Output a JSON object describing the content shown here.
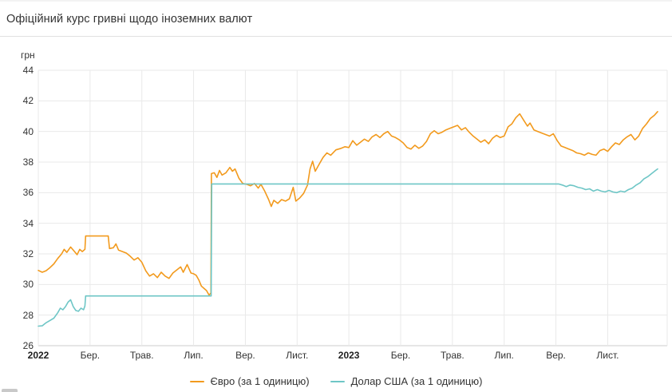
{
  "header": {
    "title": "Офіційний курс гривні щодо іноземних валют"
  },
  "chart_data": {
    "type": "line",
    "title": "Офіційний курс гривні щодо іноземних валют",
    "ylabel": "грн",
    "xlabel": "",
    "ylim": [
      26,
      44
    ],
    "xlim_months": [
      0,
      24.3
    ],
    "grid": true,
    "legend_position": "bottom-center",
    "y_ticks": [
      44,
      42,
      40,
      38,
      36,
      34,
      32,
      30,
      28,
      26
    ],
    "x_ticks": [
      {
        "m": 0,
        "label": "2022",
        "bold": true
      },
      {
        "m": 2,
        "label": "Бер.",
        "bold": false
      },
      {
        "m": 4,
        "label": "Трав.",
        "bold": false
      },
      {
        "m": 6,
        "label": "Лип.",
        "bold": false
      },
      {
        "m": 8,
        "label": "Вер.",
        "bold": false
      },
      {
        "m": 10,
        "label": "Лист.",
        "bold": false
      },
      {
        "m": 12,
        "label": "2023",
        "bold": true
      },
      {
        "m": 14,
        "label": "Бер.",
        "bold": false
      },
      {
        "m": 16,
        "label": "Трав.",
        "bold": false
      },
      {
        "m": 18,
        "label": "Лип.",
        "bold": false
      },
      {
        "m": 20,
        "label": "Вер.",
        "bold": false
      },
      {
        "m": 22,
        "label": "Лист.",
        "bold": false
      }
    ],
    "series": [
      {
        "name": "Євро (за 1 одиницю)",
        "color": "#f29a1d",
        "points": [
          [
            0,
            30.92
          ],
          [
            0.15,
            30.8
          ],
          [
            0.3,
            30.9
          ],
          [
            0.45,
            31.1
          ],
          [
            0.6,
            31.35
          ],
          [
            0.75,
            31.7
          ],
          [
            0.9,
            32.0
          ],
          [
            1.0,
            32.3
          ],
          [
            1.1,
            32.1
          ],
          [
            1.25,
            32.45
          ],
          [
            1.4,
            32.15
          ],
          [
            1.5,
            31.95
          ],
          [
            1.6,
            32.3
          ],
          [
            1.7,
            32.15
          ],
          [
            1.8,
            32.3
          ],
          [
            1.83,
            33.17
          ],
          [
            2.7,
            33.17
          ],
          [
            2.75,
            32.35
          ],
          [
            2.9,
            32.4
          ],
          [
            3.0,
            32.65
          ],
          [
            3.1,
            32.25
          ],
          [
            3.25,
            32.15
          ],
          [
            3.4,
            32.05
          ],
          [
            3.55,
            31.85
          ],
          [
            3.7,
            31.6
          ],
          [
            3.85,
            31.75
          ],
          [
            4.0,
            31.45
          ],
          [
            4.15,
            30.9
          ],
          [
            4.3,
            30.55
          ],
          [
            4.45,
            30.7
          ],
          [
            4.6,
            30.45
          ],
          [
            4.75,
            30.8
          ],
          [
            4.9,
            30.55
          ],
          [
            5.05,
            30.4
          ],
          [
            5.2,
            30.75
          ],
          [
            5.35,
            30.95
          ],
          [
            5.5,
            31.15
          ],
          [
            5.6,
            30.8
          ],
          [
            5.75,
            31.3
          ],
          [
            5.9,
            30.75
          ],
          [
            6.0,
            30.7
          ],
          [
            6.1,
            30.6
          ],
          [
            6.2,
            30.3
          ],
          [
            6.3,
            29.9
          ],
          [
            6.4,
            29.75
          ],
          [
            6.5,
            29.6
          ],
          [
            6.6,
            29.3
          ],
          [
            6.67,
            29.45
          ],
          [
            6.69,
            37.25
          ],
          [
            6.8,
            37.3
          ],
          [
            6.9,
            37.0
          ],
          [
            7.0,
            37.45
          ],
          [
            7.1,
            37.15
          ],
          [
            7.25,
            37.3
          ],
          [
            7.4,
            37.65
          ],
          [
            7.5,
            37.4
          ],
          [
            7.6,
            37.55
          ],
          [
            7.75,
            36.95
          ],
          [
            7.9,
            36.6
          ],
          [
            8.05,
            36.55
          ],
          [
            8.2,
            36.45
          ],
          [
            8.35,
            36.6
          ],
          [
            8.5,
            36.3
          ],
          [
            8.6,
            36.55
          ],
          [
            8.75,
            36.1
          ],
          [
            8.9,
            35.55
          ],
          [
            9.0,
            35.1
          ],
          [
            9.1,
            35.5
          ],
          [
            9.25,
            35.3
          ],
          [
            9.4,
            35.55
          ],
          [
            9.55,
            35.45
          ],
          [
            9.7,
            35.6
          ],
          [
            9.85,
            36.35
          ],
          [
            9.95,
            35.45
          ],
          [
            10.1,
            35.65
          ],
          [
            10.25,
            35.95
          ],
          [
            10.4,
            36.5
          ],
          [
            10.5,
            37.55
          ],
          [
            10.6,
            38.05
          ],
          [
            10.7,
            37.4
          ],
          [
            10.85,
            37.85
          ],
          [
            11.0,
            38.3
          ],
          [
            11.15,
            38.6
          ],
          [
            11.3,
            38.45
          ],
          [
            11.5,
            38.8
          ],
          [
            11.7,
            38.9
          ],
          [
            11.85,
            39.0
          ],
          [
            12.0,
            38.95
          ],
          [
            12.15,
            39.4
          ],
          [
            12.3,
            39.1
          ],
          [
            12.45,
            39.3
          ],
          [
            12.6,
            39.5
          ],
          [
            12.75,
            39.35
          ],
          [
            12.9,
            39.65
          ],
          [
            13.05,
            39.8
          ],
          [
            13.2,
            39.6
          ],
          [
            13.35,
            39.85
          ],
          [
            13.5,
            40.0
          ],
          [
            13.65,
            39.7
          ],
          [
            13.8,
            39.6
          ],
          [
            13.95,
            39.45
          ],
          [
            14.1,
            39.25
          ],
          [
            14.25,
            38.95
          ],
          [
            14.4,
            38.85
          ],
          [
            14.55,
            39.1
          ],
          [
            14.7,
            38.9
          ],
          [
            14.85,
            39.05
          ],
          [
            15.0,
            39.35
          ],
          [
            15.15,
            39.85
          ],
          [
            15.3,
            40.05
          ],
          [
            15.45,
            39.85
          ],
          [
            15.6,
            39.95
          ],
          [
            15.75,
            40.1
          ],
          [
            15.9,
            40.2
          ],
          [
            16.05,
            40.3
          ],
          [
            16.2,
            40.4
          ],
          [
            16.35,
            40.1
          ],
          [
            16.5,
            40.25
          ],
          [
            16.65,
            39.95
          ],
          [
            16.8,
            39.7
          ],
          [
            16.95,
            39.5
          ],
          [
            17.1,
            39.3
          ],
          [
            17.25,
            39.45
          ],
          [
            17.4,
            39.2
          ],
          [
            17.55,
            39.55
          ],
          [
            17.7,
            39.75
          ],
          [
            17.85,
            39.6
          ],
          [
            18.0,
            39.7
          ],
          [
            18.15,
            40.3
          ],
          [
            18.3,
            40.5
          ],
          [
            18.45,
            40.9
          ],
          [
            18.6,
            41.15
          ],
          [
            18.75,
            40.75
          ],
          [
            18.9,
            40.35
          ],
          [
            19.0,
            40.55
          ],
          [
            19.15,
            40.1
          ],
          [
            19.3,
            40.0
          ],
          [
            19.45,
            39.9
          ],
          [
            19.6,
            39.8
          ],
          [
            19.75,
            39.7
          ],
          [
            19.9,
            39.85
          ],
          [
            20.05,
            39.4
          ],
          [
            20.2,
            39.05
          ],
          [
            20.35,
            38.95
          ],
          [
            20.5,
            38.85
          ],
          [
            20.65,
            38.75
          ],
          [
            20.8,
            38.6
          ],
          [
            20.95,
            38.55
          ],
          [
            21.1,
            38.45
          ],
          [
            21.25,
            38.6
          ],
          [
            21.4,
            38.5
          ],
          [
            21.55,
            38.45
          ],
          [
            21.7,
            38.75
          ],
          [
            21.85,
            38.85
          ],
          [
            22.0,
            38.7
          ],
          [
            22.15,
            39.0
          ],
          [
            22.3,
            39.25
          ],
          [
            22.45,
            39.15
          ],
          [
            22.6,
            39.45
          ],
          [
            22.75,
            39.65
          ],
          [
            22.9,
            39.8
          ],
          [
            23.05,
            39.45
          ],
          [
            23.2,
            39.7
          ],
          [
            23.35,
            40.2
          ],
          [
            23.5,
            40.5
          ],
          [
            23.65,
            40.85
          ],
          [
            23.8,
            41.05
          ],
          [
            23.93,
            41.3
          ]
        ]
      },
      {
        "name": "Долар США (за 1 одиницю)",
        "color": "#6ec6c6",
        "points": [
          [
            0,
            27.28
          ],
          [
            0.15,
            27.3
          ],
          [
            0.3,
            27.5
          ],
          [
            0.45,
            27.65
          ],
          [
            0.6,
            27.8
          ],
          [
            0.75,
            28.15
          ],
          [
            0.85,
            28.45
          ],
          [
            0.95,
            28.35
          ],
          [
            1.05,
            28.55
          ],
          [
            1.15,
            28.85
          ],
          [
            1.25,
            29.0
          ],
          [
            1.35,
            28.55
          ],
          [
            1.45,
            28.3
          ],
          [
            1.55,
            28.25
          ],
          [
            1.65,
            28.45
          ],
          [
            1.75,
            28.35
          ],
          [
            1.8,
            28.6
          ],
          [
            1.83,
            29.25
          ],
          [
            6.68,
            29.25
          ],
          [
            6.7,
            36.57
          ],
          [
            20.1,
            36.57
          ],
          [
            20.25,
            36.5
          ],
          [
            20.4,
            36.4
          ],
          [
            20.55,
            36.5
          ],
          [
            20.7,
            36.45
          ],
          [
            20.85,
            36.35
          ],
          [
            21.0,
            36.3
          ],
          [
            21.15,
            36.2
          ],
          [
            21.3,
            36.25
          ],
          [
            21.45,
            36.1
          ],
          [
            21.6,
            36.2
          ],
          [
            21.75,
            36.1
          ],
          [
            21.9,
            36.05
          ],
          [
            22.05,
            36.15
          ],
          [
            22.2,
            36.05
          ],
          [
            22.35,
            36.0
          ],
          [
            22.5,
            36.1
          ],
          [
            22.65,
            36.05
          ],
          [
            22.8,
            36.2
          ],
          [
            22.95,
            36.3
          ],
          [
            23.1,
            36.5
          ],
          [
            23.25,
            36.65
          ],
          [
            23.4,
            36.9
          ],
          [
            23.55,
            37.05
          ],
          [
            23.7,
            37.25
          ],
          [
            23.85,
            37.45
          ],
          [
            23.93,
            37.55
          ]
        ]
      }
    ]
  }
}
